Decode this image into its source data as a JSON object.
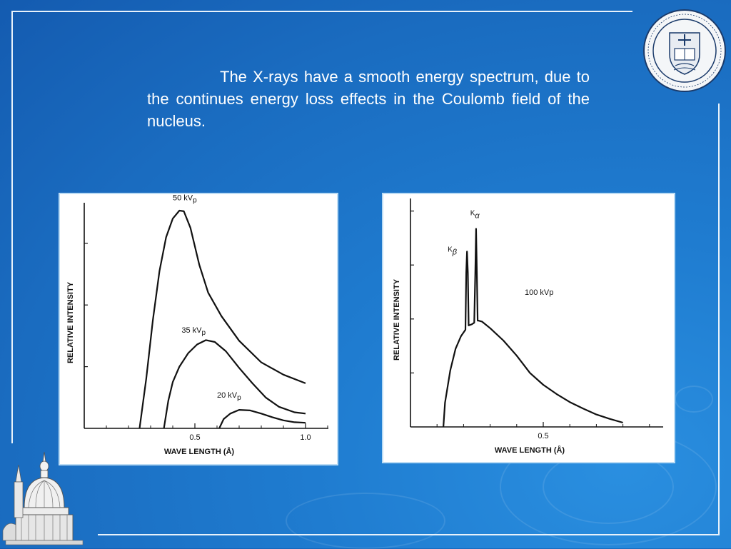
{
  "slide": {
    "paragraph": "The X-rays have a smooth energy spectrum, due to the continues energy loss effects in the Coulomb field of the nucleus."
  },
  "colors": {
    "background": "#1a6cc0",
    "text": "#ffffff",
    "plot_ink": "#111111"
  },
  "icons": [
    "university-seal-icon",
    "golden-dome-icon"
  ],
  "chart_data": [
    {
      "type": "line",
      "xlabel": "WAVE LENGTH (Å)",
      "ylabel": "RELATIVE    INTENSITY",
      "xlim": [
        0,
        1.1
      ],
      "ylim": [
        0,
        4.1
      ],
      "xticks": [
        0.5,
        1.0
      ],
      "xtick_labels": [
        "0.5",
        "1.0"
      ],
      "series": [
        {
          "name": "50 kVp",
          "x": [
            0.25,
            0.28,
            0.31,
            0.34,
            0.37,
            0.4,
            0.43,
            0.45,
            0.48,
            0.52,
            0.56,
            0.62,
            0.7,
            0.8,
            0.9,
            1.0
          ],
          "y": [
            0,
            0.8,
            1.75,
            2.55,
            3.1,
            3.4,
            3.53,
            3.52,
            3.25,
            2.65,
            2.2,
            1.82,
            1.42,
            1.07,
            0.87,
            0.73
          ]
        },
        {
          "name": "35 kVp",
          "x": [
            0.36,
            0.38,
            0.4,
            0.43,
            0.47,
            0.51,
            0.55,
            0.59,
            0.64,
            0.7,
            0.76,
            0.82,
            0.88,
            0.95,
            1.0
          ],
          "y": [
            0,
            0.45,
            0.75,
            1.0,
            1.22,
            1.36,
            1.43,
            1.4,
            1.25,
            0.98,
            0.73,
            0.5,
            0.35,
            0.26,
            0.24
          ]
        },
        {
          "name": "20 kVp",
          "x": [
            0.61,
            0.63,
            0.66,
            0.7,
            0.75,
            0.8,
            0.85,
            0.9,
            0.95,
            1.0
          ],
          "y": [
            0,
            0.15,
            0.24,
            0.3,
            0.29,
            0.24,
            0.18,
            0.13,
            0.1,
            0.09
          ]
        }
      ],
      "series_labels": [
        {
          "text": "50 kV",
          "sub": "p",
          "x": 0.4,
          "y": 3.7
        },
        {
          "text": "35 kV",
          "sub": "p",
          "x": 0.44,
          "y": 1.55
        },
        {
          "text": "20 kV",
          "sub": "p",
          "x": 0.6,
          "y": 0.5
        }
      ]
    },
    {
      "type": "line",
      "xlabel": "WAVE LENGTH (Å)",
      "ylabel": "RELATIVE    INTENSITY",
      "xlim": [
        0,
        1.05
      ],
      "ylim": [
        0,
        4.3
      ],
      "xticks": [
        0.5
      ],
      "xtick_labels": [
        "0.5"
      ],
      "series": [
        {
          "name": "100 kVp",
          "x": [
            0.124,
            0.13,
            0.15,
            0.17,
            0.19,
            0.207,
            0.21,
            0.213,
            0.216,
            0.219,
            0.23,
            0.24,
            0.244,
            0.247,
            0.25,
            0.253,
            0.256,
            0.27,
            0.3,
            0.35,
            0.4,
            0.45,
            0.5,
            0.55,
            0.6,
            0.65,
            0.7,
            0.75,
            0.8
          ],
          "y": [
            0,
            0.45,
            1.05,
            1.45,
            1.68,
            1.8,
            2.85,
            3.25,
            2.85,
            1.88,
            1.9,
            1.93,
            2.85,
            3.67,
            2.85,
            1.97,
            1.97,
            1.95,
            1.83,
            1.6,
            1.32,
            1.0,
            0.78,
            0.61,
            0.46,
            0.34,
            0.23,
            0.15,
            0.08
          ]
        }
      ],
      "series_labels": [
        {
          "text": "100   kVp",
          "sub": "",
          "x": 0.43,
          "y": 2.45
        }
      ],
      "annotations": [
        {
          "text": "K",
          "sub": "β",
          "x": 0.14,
          "y": 3.25
        },
        {
          "text": "K",
          "sub": "α",
          "x": 0.225,
          "y": 3.92
        }
      ]
    }
  ]
}
